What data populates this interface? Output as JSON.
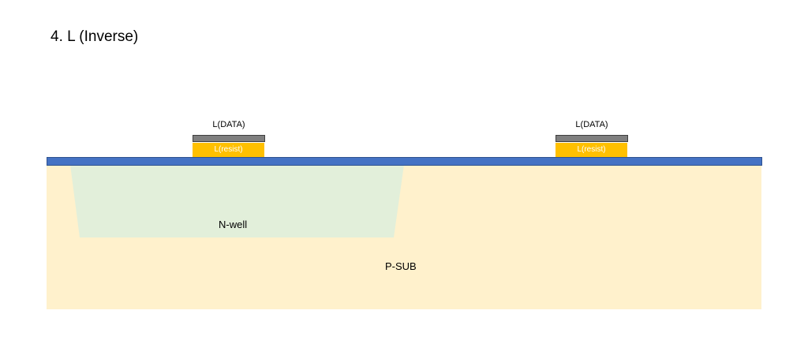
{
  "title": "4. L (Inverse)",
  "regions": {
    "substrate_label": "P-SUB",
    "well_label": "N-well"
  },
  "masks": [
    {
      "data_label": "L(DATA)",
      "resist_label": "L(resist)"
    },
    {
      "data_label": "L(DATA)",
      "resist_label": "L(resist)"
    }
  ],
  "colors": {
    "substrate": "#fff1cc",
    "well": "#e2efda",
    "oxide": "#4472c4",
    "resist": "#ffc000",
    "mask": "#7f7f7f"
  }
}
